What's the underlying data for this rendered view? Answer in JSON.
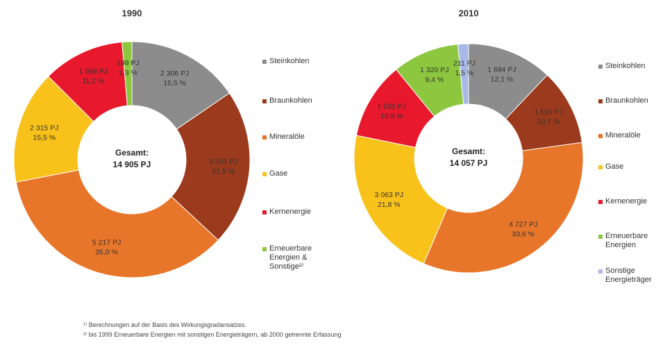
{
  "chart_data": [
    {
      "type": "pie",
      "donut": true,
      "title": "1990",
      "center_title": "Gesamt:",
      "center_value": "14 905 PJ",
      "categories": [
        "Steinkohlen",
        "Braunkohlen",
        "Mineralöle",
        "Gase",
        "Kernenergie",
        "Erneuerbare Energien & Sonstige²⁾"
      ],
      "values": [
        2306,
        3201,
        5217,
        2315,
        1668,
        199
      ],
      "value_labels": [
        "2 306 PJ",
        "3 201 PJ",
        "5 217 PJ",
        "2 315 PJ",
        "1 668 PJ",
        "199 PJ"
      ],
      "percents": [
        15.5,
        21.5,
        35.0,
        15.5,
        11.2,
        1.3
      ],
      "percent_labels": [
        "15,5 %",
        "21,5 %",
        "35,0 %",
        "15,5 %",
        "11,2 %",
        "1,3 %"
      ],
      "colors": [
        "#8c8c8c",
        "#9b3a1c",
        "#e8762a",
        "#f9c21a",
        "#e8192c",
        "#8dc63f"
      ]
    },
    {
      "type": "pie",
      "donut": true,
      "title": "2010",
      "center_title": "Gesamt:",
      "center_value": "14 057 PJ",
      "categories": [
        "Steinkohlen",
        "Braunkohlen",
        "Mineralöle",
        "Gase",
        "Kernenergie",
        "Erneuerbare Energien",
        "Sonstige Energieträger"
      ],
      "values": [
        1694,
        1510,
        4727,
        3063,
        1532,
        1320,
        211
      ],
      "value_labels": [
        "1 694 PJ",
        "1 510 PJ",
        "4 727 PJ",
        "3 063 PJ",
        "1 532 PJ",
        "1 320 PJ",
        "211 PJ"
      ],
      "percents": [
        12.1,
        10.7,
        33.6,
        21.8,
        10.9,
        9.4,
        1.5
      ],
      "percent_labels": [
        "12,1 %",
        "10,7 %",
        "33,6 %",
        "21,8 %",
        "10,9 %",
        "9,4 %",
        "1,5 %"
      ],
      "colors": [
        "#8c8c8c",
        "#9b3a1c",
        "#e8762a",
        "#f9c21a",
        "#e8192c",
        "#8dc63f",
        "#a9b9e6"
      ]
    }
  ],
  "footnotes": [
    "¹⁾ Berechnungen auf der Basis des Wirkungsgradansatzes.",
    "²⁾ bis 1999 Erneuerbare Energien mit sonstigen Energieträgern, ab 2000 getrennte Erfassung"
  ]
}
